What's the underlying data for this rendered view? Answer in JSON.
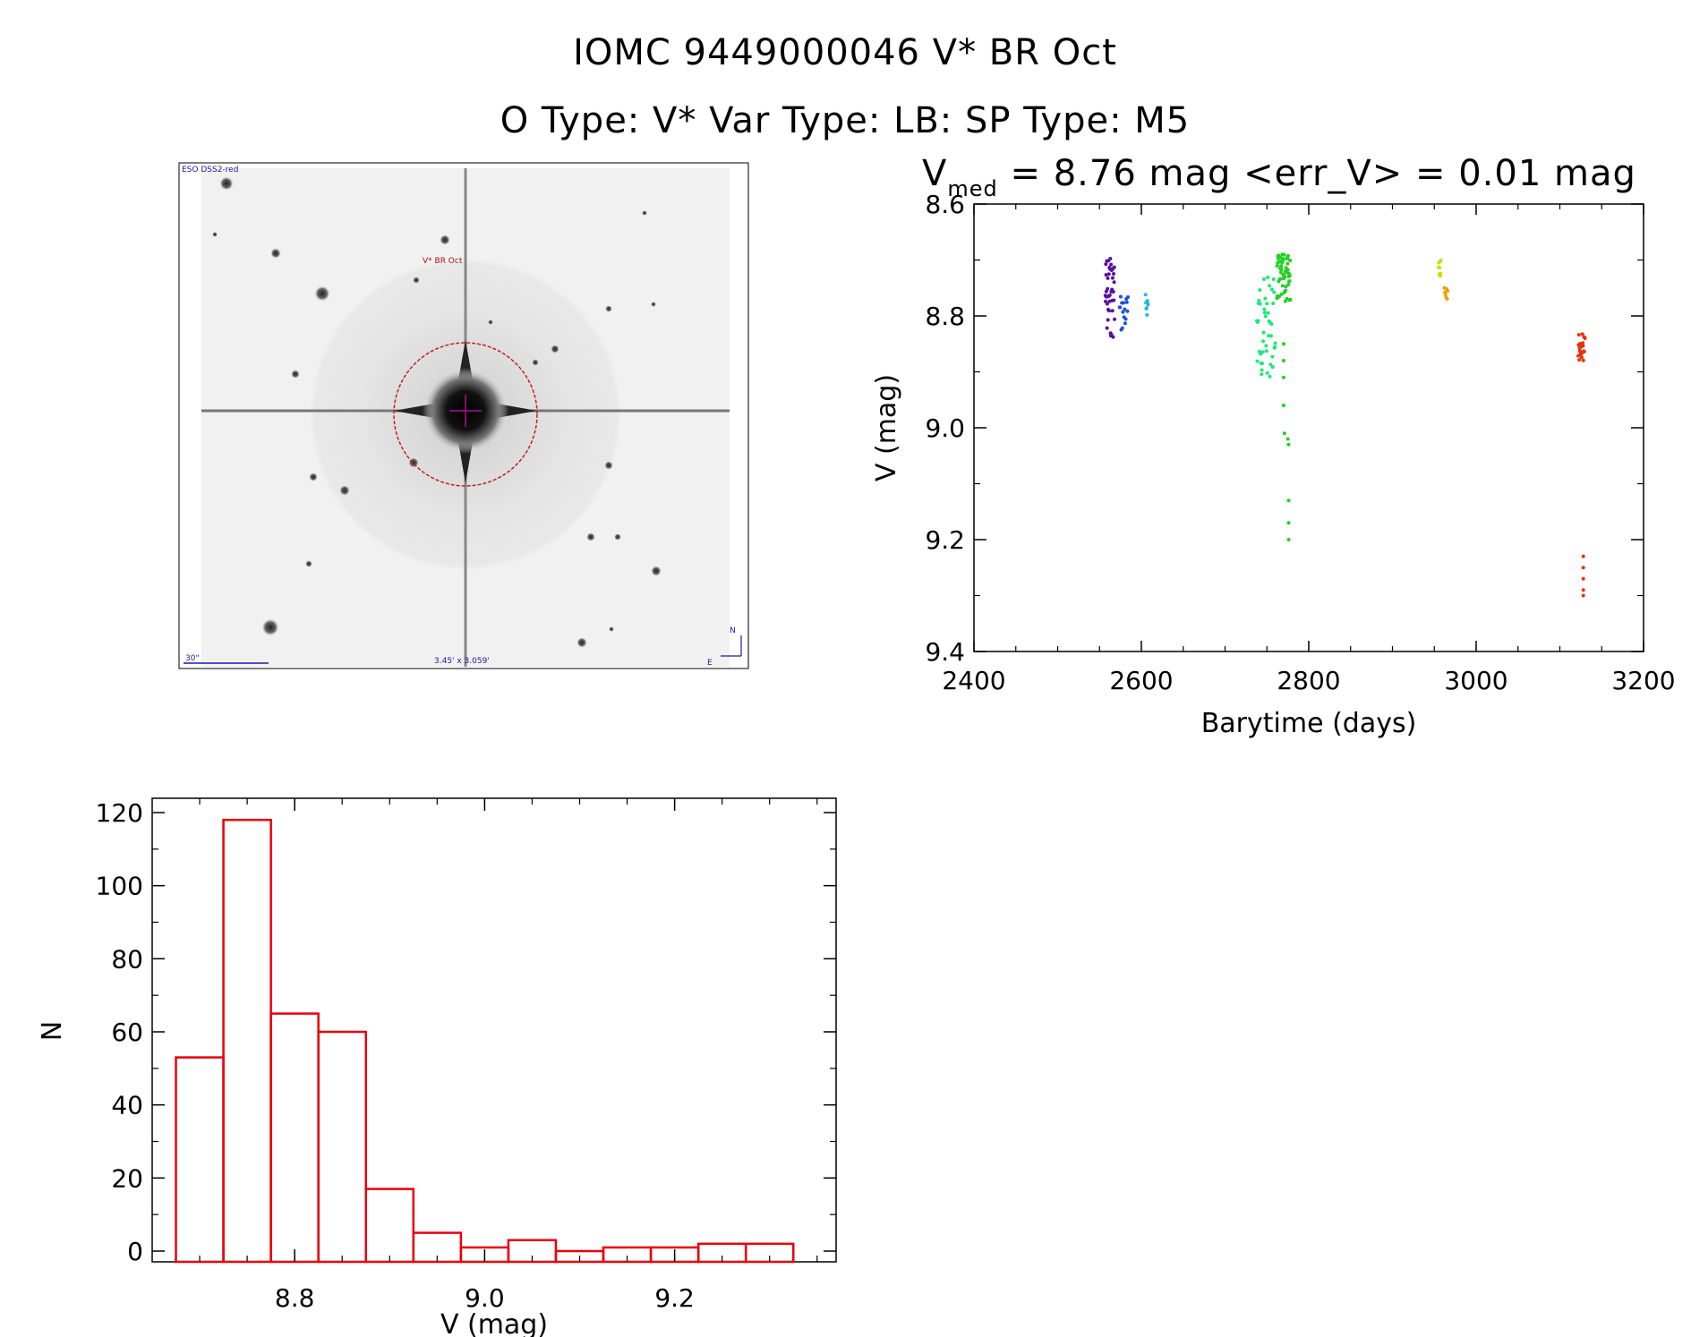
{
  "header": {
    "title": "IOMC 9449000046    V* BR Oct",
    "subtitle": "O Type: V*  Var Type: LB:  SP Type: M5"
  },
  "finder_image": {
    "survey_label": "ESO DSS2-red",
    "target_label": "V* BR Oct",
    "scale_label": "30\"",
    "size_label": "3.45' x 3.059'",
    "north_label": "N",
    "east_label": "E"
  },
  "colors": {
    "histogram": "#e8000b",
    "aperture_circle": "#c81e1e",
    "annotation_blue": "#1a1aa6"
  },
  "chart_data": [
    {
      "id": "lightcurve",
      "type": "scatter",
      "title_main": "V",
      "title_sub": "med",
      "title_rest": " = 8.76 mag <err_V> = 0.01 mag",
      "xlabel": "Barytime (days)",
      "ylabel": "V (mag)",
      "xlim": [
        2400,
        3200
      ],
      "ylim": [
        8.6,
        9.4
      ],
      "y_inverted": true,
      "x_ticks": [
        "2400",
        "2600",
        "2800",
        "3000",
        "3200"
      ],
      "y_ticks": [
        "8.6",
        "8.8",
        "9.0",
        "9.2",
        "9.4"
      ],
      "series": [
        {
          "color": "#5a0fa0",
          "t0": 2557,
          "t1": 2568,
          "n": 40,
          "vmin": 8.69,
          "vmax": 8.84
        },
        {
          "color": "#1f4fd8",
          "t0": 2574,
          "t1": 2584,
          "n": 16,
          "vmin": 8.76,
          "vmax": 8.83
        },
        {
          "color": "#1fb8e8",
          "t0": 2605,
          "t1": 2608,
          "n": 8,
          "vmin": 8.76,
          "vmax": 8.8
        },
        {
          "color": "#1ee87a",
          "t0": 2738,
          "t1": 2760,
          "n": 45,
          "vmin": 8.73,
          "vmax": 8.91
        },
        {
          "color": "#22d022",
          "t0": 2762,
          "t1": 2778,
          "n": 55,
          "vmin": 8.69,
          "vmax": 8.78
        },
        {
          "color": "#c8e000",
          "t0": 2955,
          "t1": 2958,
          "n": 8,
          "vmin": 8.68,
          "vmax": 8.73
        },
        {
          "color": "#f0a000",
          "t0": 2962,
          "t1": 2966,
          "n": 7,
          "vmin": 8.73,
          "vmax": 8.77
        },
        {
          "color": "#e83010",
          "t0": 3122,
          "t1": 3130,
          "n": 22,
          "vmin": 8.83,
          "vmax": 8.88
        }
      ],
      "outliers": [
        {
          "t": 2770,
          "v": 8.85,
          "color": "#22d022"
        },
        {
          "t": 2770,
          "v": 8.88,
          "color": "#22d022"
        },
        {
          "t": 2770,
          "v": 8.91,
          "color": "#22d022"
        },
        {
          "t": 2770,
          "v": 8.96,
          "color": "#22d022"
        },
        {
          "t": 2771,
          "v": 9.01,
          "color": "#22d022"
        },
        {
          "t": 2775,
          "v": 9.02,
          "color": "#22d022"
        },
        {
          "t": 2776,
          "v": 9.03,
          "color": "#22d022"
        },
        {
          "t": 2776,
          "v": 9.13,
          "color": "#22d022"
        },
        {
          "t": 2776,
          "v": 9.17,
          "color": "#22d022"
        },
        {
          "t": 2776,
          "v": 9.2,
          "color": "#22d022"
        },
        {
          "t": 3128,
          "v": 9.23,
          "color": "#e83010"
        },
        {
          "t": 3128,
          "v": 9.25,
          "color": "#e83010"
        },
        {
          "t": 3128,
          "v": 9.27,
          "color": "#e83010"
        },
        {
          "t": 3128,
          "v": 9.29,
          "color": "#e83010"
        },
        {
          "t": 3128,
          "v": 9.3,
          "color": "#e83010"
        }
      ]
    },
    {
      "id": "histogram",
      "type": "bar",
      "xlabel": "V (mag)",
      "ylabel": "N",
      "xlim": [
        8.65,
        9.37
      ],
      "ylim": [
        0,
        120
      ],
      "x_ticks": [
        "8.8",
        "9.0",
        "9.2"
      ],
      "y_ticks": [
        "0",
        "20",
        "40",
        "60",
        "80",
        "100",
        "120"
      ],
      "bin_width": 0.05,
      "bin_starts": [
        8.675,
        8.725,
        8.775,
        8.825,
        8.875,
        8.925,
        8.975,
        9.025,
        9.075,
        9.125,
        9.175,
        9.225,
        9.275
      ],
      "values": [
        53,
        118,
        65,
        60,
        17,
        5,
        1,
        3,
        0,
        1,
        1,
        2,
        2
      ]
    }
  ]
}
